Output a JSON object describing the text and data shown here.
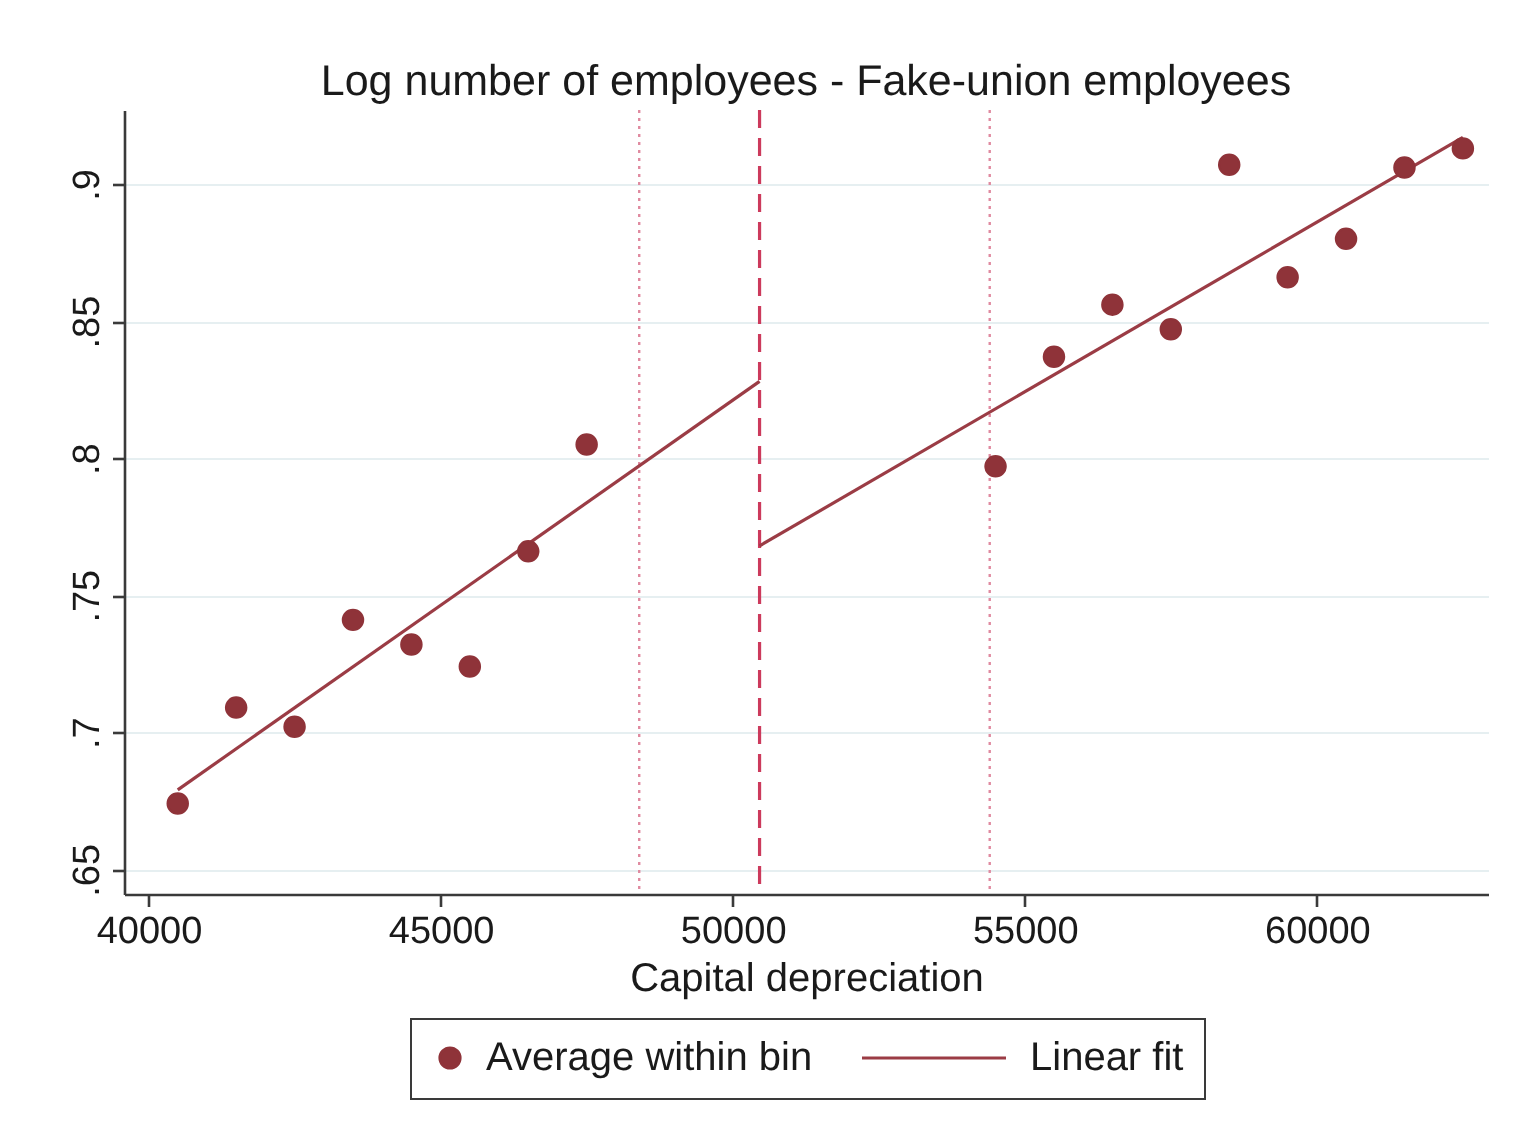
{
  "chart_data": {
    "type": "scatter",
    "title": "Log number of employees - Fake-union employees",
    "xlabel": "Capital depreciation",
    "xlim": [
      39580,
      62930
    ],
    "xticks": [
      40000,
      45000,
      50000,
      55000,
      60000
    ],
    "ylim": [
      0.641,
      0.927
    ],
    "yticks": [
      {
        "value": 0.65,
        "label": ".65"
      },
      {
        "value": 0.7,
        "label": ".7"
      },
      {
        "value": 0.75,
        "label": ".75"
      },
      {
        "value": 0.8,
        "label": ".8"
      },
      {
        "value": 0.85,
        "label": ".85"
      },
      {
        "value": 0.9,
        "label": ".9"
      }
    ],
    "grid": "y",
    "legend": "bottom",
    "marker": "circle",
    "ref_lines": [
      {
        "axis": "x",
        "value": 48400,
        "color": "#e08aa0",
        "line_style": "dotted"
      },
      {
        "axis": "x",
        "value": 50460,
        "color": "#cc3a5c",
        "line_style": "dashed"
      },
      {
        "axis": "x",
        "value": 54400,
        "color": "#e08aa0",
        "line_style": "dotted"
      }
    ],
    "series": [
      {
        "name": "Average within bin",
        "color": "#8f3339",
        "x": [
          40500,
          41500,
          42500,
          43500,
          44500,
          45500,
          46500,
          47500,
          54500,
          55500,
          56500,
          57500,
          58500,
          59500,
          60500,
          61500,
          62500
        ],
        "values": [
          0.674,
          0.709,
          0.702,
          0.741,
          0.732,
          0.724,
          0.766,
          0.805,
          0.797,
          0.837,
          0.856,
          0.847,
          0.907,
          0.866,
          0.88,
          0.906,
          0.913
        ]
      },
      {
        "name": "Linear fit",
        "type": "line",
        "marker": "none",
        "color": "#9b3c45",
        "x": [
          40500,
          50460
        ],
        "values": [
          0.679,
          0.828
        ]
      },
      {
        "type": "line",
        "marker": "none",
        "color": "#9b3c45",
        "x": [
          50460,
          62500
        ],
        "values": [
          0.768,
          0.917
        ]
      }
    ]
  }
}
